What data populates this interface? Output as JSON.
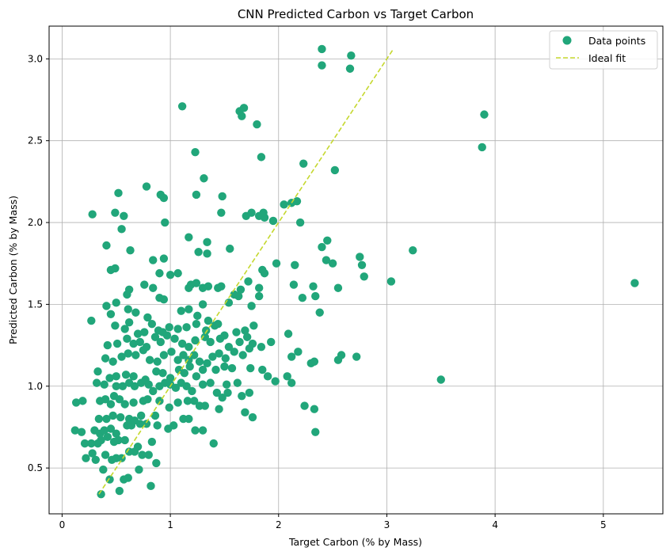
{
  "chart_data": {
    "type": "scatter",
    "title": "CNN Predicted Carbon vs Target Carbon",
    "xlabel": "Target Carbon (% by Mass)",
    "ylabel": "Predicted Carbon (% by Mass)",
    "xlim": [
      -0.12,
      5.55
    ],
    "ylim": [
      0.22,
      3.2
    ],
    "xticks": [
      0,
      1,
      2,
      3,
      4,
      5
    ],
    "xtick_labels": [
      "0",
      "1",
      "2",
      "3",
      "4",
      "5"
    ],
    "yticks": [
      0.5,
      1.0,
      1.5,
      2.0,
      2.5,
      3.0
    ],
    "ytick_labels": [
      "0.5",
      "1.0",
      "1.5",
      "2.0",
      "2.5",
      "3.0"
    ],
    "grid": true,
    "legend_position": "top-right",
    "series": [
      {
        "name": "Data points",
        "kind": "scatter",
        "color": "#21a67a",
        "points": [
          [
            0.36,
            0.34
          ],
          [
            0.53,
            0.36
          ],
          [
            0.82,
            0.39
          ],
          [
            0.44,
            0.43
          ],
          [
            0.57,
            0.43
          ],
          [
            0.61,
            0.44
          ],
          [
            0.38,
            0.49
          ],
          [
            0.71,
            0.49
          ],
          [
            0.87,
            0.53
          ],
          [
            0.31,
            0.55
          ],
          [
            0.46,
            0.55
          ],
          [
            0.5,
            0.56
          ],
          [
            0.55,
            0.56
          ],
          [
            0.22,
            0.56
          ],
          [
            0.4,
            0.58
          ],
          [
            0.74,
            0.58
          ],
          [
            0.8,
            0.58
          ],
          [
            0.28,
            0.59
          ],
          [
            0.62,
            0.6
          ],
          [
            0.67,
            0.6
          ],
          [
            0.7,
            0.63
          ],
          [
            0.33,
            0.65
          ],
          [
            0.27,
            0.65
          ],
          [
            0.48,
            0.66
          ],
          [
            0.52,
            0.67
          ],
          [
            0.36,
            0.67
          ],
          [
            0.21,
            0.65
          ],
          [
            0.83,
            0.66
          ],
          [
            0.58,
            0.67
          ],
          [
            0.42,
            0.69
          ],
          [
            0.12,
            0.73
          ],
          [
            0.18,
            0.72
          ],
          [
            0.3,
            0.73
          ],
          [
            0.35,
            0.71
          ],
          [
            0.39,
            0.73
          ],
          [
            0.45,
            0.74
          ],
          [
            0.5,
            0.71
          ],
          [
            0.6,
            0.76
          ],
          [
            0.64,
            0.76
          ],
          [
            0.72,
            0.77
          ],
          [
            0.78,
            0.77
          ],
          [
            0.88,
            0.76
          ],
          [
            0.98,
            0.74
          ],
          [
            1.03,
            0.76
          ],
          [
            1.12,
            0.8
          ],
          [
            1.17,
            0.8
          ],
          [
            1.23,
            0.73
          ],
          [
            1.3,
            0.73
          ],
          [
            1.4,
            0.65
          ],
          [
            0.34,
            0.8
          ],
          [
            0.41,
            0.8
          ],
          [
            0.47,
            0.82
          ],
          [
            0.54,
            0.81
          ],
          [
            0.62,
            0.8
          ],
          [
            0.67,
            0.79
          ],
          [
            0.73,
            0.82
          ],
          [
            0.86,
            0.82
          ],
          [
            0.13,
            0.9
          ],
          [
            0.19,
            0.91
          ],
          [
            0.35,
            0.91
          ],
          [
            0.4,
            0.92
          ],
          [
            0.45,
            0.89
          ],
          [
            0.48,
            0.94
          ],
          [
            0.53,
            0.92
          ],
          [
            0.58,
            0.89
          ],
          [
            0.66,
            0.9
          ],
          [
            0.75,
            0.91
          ],
          [
            0.79,
            0.92
          ],
          [
            0.9,
            0.91
          ],
          [
            0.99,
            0.87
          ],
          [
            1.07,
            0.9
          ],
          [
            1.16,
            0.91
          ],
          [
            1.22,
            0.91
          ],
          [
            1.27,
            0.88
          ],
          [
            1.32,
            0.88
          ],
          [
            1.45,
            0.86
          ],
          [
            1.48,
            0.93
          ],
          [
            1.53,
            0.96
          ],
          [
            1.66,
            0.94
          ],
          [
            1.73,
            0.96
          ],
          [
            1.69,
            0.84
          ],
          [
            1.76,
            0.81
          ],
          [
            2.24,
            0.88
          ],
          [
            2.33,
            0.86
          ],
          [
            2.34,
            0.72
          ],
          [
            0.32,
            1.02
          ],
          [
            0.39,
            1.01
          ],
          [
            0.5,
            1.0
          ],
          [
            0.56,
            1.0
          ],
          [
            0.62,
            1.02
          ],
          [
            0.67,
            1.0
          ],
          [
            0.73,
            1.02
          ],
          [
            0.8,
            1.01
          ],
          [
            0.84,
            0.97
          ],
          [
            0.9,
            1.0
          ],
          [
            0.95,
            1.02
          ],
          [
            1.0,
            1.01
          ],
          [
            1.05,
            0.99
          ],
          [
            1.1,
            1.02
          ],
          [
            1.15,
            1.0
          ],
          [
            1.2,
            0.97
          ],
          [
            1.3,
            1.01
          ],
          [
            1.37,
            1.02
          ],
          [
            1.43,
            0.96
          ],
          [
            1.52,
            1.01
          ],
          [
            1.62,
            1.02
          ],
          [
            1.97,
            1.03
          ],
          [
            2.08,
            1.06
          ],
          [
            2.12,
            1.02
          ],
          [
            0.33,
            1.09
          ],
          [
            0.44,
            1.05
          ],
          [
            0.5,
            1.06
          ],
          [
            0.59,
            1.07
          ],
          [
            0.66,
            1.06
          ],
          [
            0.77,
            1.04
          ],
          [
            0.87,
            1.09
          ],
          [
            0.93,
            1.08
          ],
          [
            1.0,
            1.05
          ],
          [
            1.08,
            1.1
          ],
          [
            1.13,
            1.08
          ],
          [
            1.18,
            1.12
          ],
          [
            1.24,
            1.06
          ],
          [
            1.3,
            1.1
          ],
          [
            1.42,
            1.1
          ],
          [
            1.5,
            1.12
          ],
          [
            1.57,
            1.11
          ],
          [
            1.74,
            1.11
          ],
          [
            1.85,
            1.1
          ],
          [
            1.9,
            1.06
          ],
          [
            2.12,
            1.18
          ],
          [
            2.18,
            1.21
          ],
          [
            2.3,
            1.14
          ],
          [
            2.33,
            1.15
          ],
          [
            2.55,
            1.16
          ],
          [
            2.58,
            1.19
          ],
          [
            2.72,
            1.18
          ],
          [
            3.5,
            1.04
          ],
          [
            0.4,
            1.17
          ],
          [
            0.47,
            1.15
          ],
          [
            0.55,
            1.18
          ],
          [
            0.61,
            1.2
          ],
          [
            0.68,
            1.19
          ],
          [
            0.75,
            1.22
          ],
          [
            0.81,
            1.16
          ],
          [
            0.88,
            1.15
          ],
          [
            0.94,
            1.19
          ],
          [
            1.01,
            1.21
          ],
          [
            1.07,
            1.16
          ],
          [
            1.12,
            1.19
          ],
          [
            1.17,
            1.16
          ],
          [
            1.22,
            1.19
          ],
          [
            1.27,
            1.15
          ],
          [
            1.34,
            1.14
          ],
          [
            1.39,
            1.18
          ],
          [
            1.45,
            1.2
          ],
          [
            1.51,
            1.17
          ],
          [
            1.59,
            1.21
          ],
          [
            1.67,
            1.19
          ],
          [
            1.73,
            1.23
          ],
          [
            1.84,
            1.24
          ],
          [
            1.93,
            1.27
          ],
          [
            0.42,
            1.25
          ],
          [
            0.51,
            1.26
          ],
          [
            0.6,
            1.29
          ],
          [
            0.66,
            1.26
          ],
          [
            0.72,
            1.27
          ],
          [
            0.78,
            1.24
          ],
          [
            0.86,
            1.3
          ],
          [
            0.91,
            1.27
          ],
          [
            0.97,
            1.31
          ],
          [
            1.04,
            1.29
          ],
          [
            1.11,
            1.26
          ],
          [
            1.17,
            1.24
          ],
          [
            1.23,
            1.28
          ],
          [
            1.32,
            1.3
          ],
          [
            1.37,
            1.27
          ],
          [
            1.46,
            1.29
          ],
          [
            1.54,
            1.24
          ],
          [
            1.64,
            1.27
          ],
          [
            1.71,
            1.3
          ],
          [
            1.76,
            1.26
          ],
          [
            0.27,
            1.4
          ],
          [
            0.49,
            1.37
          ],
          [
            0.58,
            1.35
          ],
          [
            0.62,
            1.39
          ],
          [
            0.7,
            1.32
          ],
          [
            0.76,
            1.33
          ],
          [
            0.83,
            1.38
          ],
          [
            0.89,
            1.34
          ],
          [
            0.93,
            1.33
          ],
          [
            0.99,
            1.36
          ],
          [
            1.07,
            1.35
          ],
          [
            1.15,
            1.36
          ],
          [
            1.24,
            1.38
          ],
          [
            1.33,
            1.34
          ],
          [
            1.41,
            1.37
          ],
          [
            1.5,
            1.31
          ],
          [
            1.61,
            1.33
          ],
          [
            1.69,
            1.34
          ],
          [
            1.77,
            1.37
          ],
          [
            2.09,
            1.32
          ],
          [
            0.41,
            1.49
          ],
          [
            0.45,
            1.44
          ],
          [
            0.5,
            1.51
          ],
          [
            0.61,
            1.47
          ],
          [
            0.68,
            1.45
          ],
          [
            0.79,
            1.42
          ],
          [
            0.9,
            1.54
          ],
          [
            0.94,
            1.53
          ],
          [
            1.1,
            1.46
          ],
          [
            1.17,
            1.47
          ],
          [
            1.25,
            1.43
          ],
          [
            1.3,
            1.5
          ],
          [
            1.35,
            1.4
          ],
          [
            1.44,
            1.38
          ],
          [
            1.54,
            1.51
          ],
          [
            1.63,
            1.55
          ],
          [
            1.75,
            1.49
          ],
          [
            1.82,
            1.55
          ],
          [
            2.34,
            1.55
          ],
          [
            2.38,
            1.45
          ],
          [
            0.45,
            1.71
          ],
          [
            0.49,
            1.72
          ],
          [
            0.6,
            1.56
          ],
          [
            0.62,
            1.59
          ],
          [
            0.76,
            1.62
          ],
          [
            0.84,
            1.6
          ],
          [
            0.9,
            1.69
          ],
          [
            1.0,
            1.68
          ],
          [
            1.17,
            1.6
          ],
          [
            1.19,
            1.62
          ],
          [
            1.24,
            1.63
          ],
          [
            1.3,
            1.6
          ],
          [
            1.35,
            1.61
          ],
          [
            1.44,
            1.6
          ],
          [
            1.47,
            1.61
          ],
          [
            1.59,
            1.56
          ],
          [
            1.65,
            1.59
          ],
          [
            1.72,
            1.64
          ],
          [
            1.82,
            1.6
          ],
          [
            1.87,
            1.69
          ],
          [
            2.14,
            1.62
          ],
          [
            2.15,
            1.74
          ],
          [
            2.22,
            1.54
          ],
          [
            2.32,
            1.61
          ],
          [
            2.44,
            1.77
          ],
          [
            2.5,
            1.75
          ],
          [
            2.55,
            1.6
          ],
          [
            2.75,
            1.79
          ],
          [
            2.79,
            1.67
          ],
          [
            2.77,
            1.74
          ],
          [
            3.04,
            1.64
          ],
          [
            3.24,
            1.83
          ],
          [
            5.29,
            1.63
          ],
          [
            0.41,
            1.86
          ],
          [
            0.63,
            1.83
          ],
          [
            0.84,
            1.77
          ],
          [
            0.94,
            1.78
          ],
          [
            1.07,
            1.69
          ],
          [
            1.17,
            1.91
          ],
          [
            1.26,
            1.82
          ],
          [
            1.34,
            1.81
          ],
          [
            1.34,
            1.88
          ],
          [
            1.55,
            1.84
          ],
          [
            1.85,
            1.71
          ],
          [
            1.87,
            2.03
          ],
          [
            1.98,
            1.75
          ],
          [
            2.12,
            2.12
          ],
          [
            2.17,
            2.13
          ],
          [
            2.2,
            2.0
          ],
          [
            2.4,
            1.85
          ],
          [
            2.45,
            1.89
          ],
          [
            0.28,
            2.05
          ],
          [
            0.55,
            1.96
          ],
          [
            0.49,
            2.06
          ],
          [
            0.57,
            2.04
          ],
          [
            0.52,
            2.18
          ],
          [
            0.78,
            2.22
          ],
          [
            0.91,
            2.17
          ],
          [
            0.94,
            2.15
          ],
          [
            0.95,
            2.0
          ],
          [
            1.24,
            2.17
          ],
          [
            1.31,
            2.27
          ],
          [
            1.47,
            2.06
          ],
          [
            1.48,
            2.16
          ],
          [
            1.7,
            2.04
          ],
          [
            1.75,
            2.06
          ],
          [
            1.82,
            2.04
          ],
          [
            1.95,
            2.01
          ],
          [
            2.05,
            2.11
          ],
          [
            1.86,
            2.06
          ],
          [
            1.23,
            2.43
          ],
          [
            1.84,
            2.4
          ],
          [
            2.23,
            2.36
          ],
          [
            2.52,
            2.32
          ],
          [
            1.11,
            2.71
          ],
          [
            1.64,
            2.68
          ],
          [
            1.66,
            2.65
          ],
          [
            1.68,
            2.7
          ],
          [
            1.8,
            2.6
          ],
          [
            2.4,
            2.96
          ],
          [
            2.4,
            3.06
          ],
          [
            2.66,
            2.94
          ],
          [
            2.67,
            3.02
          ],
          [
            3.88,
            2.46
          ],
          [
            3.9,
            2.66
          ]
        ]
      },
      {
        "name": "Ideal fit",
        "kind": "line",
        "dashed": true,
        "color": "#c5d82e",
        "points": [
          [
            0.34,
            0.34
          ],
          [
            3.06,
            3.06
          ]
        ]
      }
    ]
  }
}
